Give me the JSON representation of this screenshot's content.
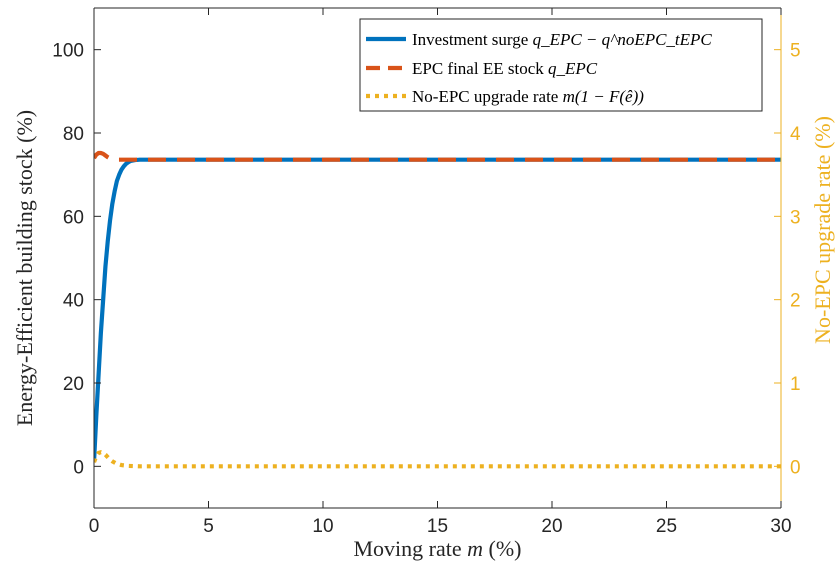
{
  "chart_data": {
    "type": "line",
    "xlabel": "Moving rate m (%)",
    "xlabel_parts": {
      "text": "Moving rate ",
      "var": "m",
      "unit": " (%)"
    },
    "ylabel": "Energy-Efficient building stock (%)",
    "y2label": "No-EPC upgrade rate (%)",
    "xlim": [
      0,
      30
    ],
    "ylim": [
      -10,
      110
    ],
    "y2lim": [
      -0.5,
      5.5
    ],
    "xticks": [
      "0",
      "5",
      "10",
      "15",
      "20",
      "25",
      "30"
    ],
    "yticks": [
      "0",
      "20",
      "40",
      "60",
      "80",
      "100"
    ],
    "y2ticks": [
      "0",
      "1",
      "2",
      "3",
      "4",
      "5"
    ],
    "grid": false,
    "legend_position": "top-right",
    "colors": {
      "left_axis": "#262626",
      "right_axis": "#EDB120"
    },
    "series": [
      {
        "name": "Investment surge q_EPC − q_{t_EPC}^{noEPC}",
        "legend_text": "Investment surge ",
        "legend_math": "q_EPC − q^noEPC_tEPC",
        "color": "#0072BD",
        "style": "solid",
        "axis": "left",
        "x": [
          0,
          0.1,
          0.2,
          0.3,
          0.4,
          0.5,
          0.6,
          0.7,
          0.8,
          0.9,
          1.0,
          1.1,
          1.2,
          1.3,
          1.4,
          1.5,
          1.6,
          1.8,
          2.0,
          2.5,
          5,
          10,
          15,
          20,
          25,
          30
        ],
        "y": [
          1,
          12,
          22,
          32,
          40,
          48,
          54,
          59,
          63,
          66,
          68.5,
          70,
          71.2,
          72,
          72.6,
          73,
          73.3,
          73.5,
          73.6,
          73.6,
          73.6,
          73.6,
          73.6,
          73.6,
          73.6,
          73.6
        ]
      },
      {
        "name": "EPC final EE stock q_EPC",
        "legend_text": "EPC final EE stock ",
        "legend_math": "q_EPC",
        "color": "#D95319",
        "style": "dashed",
        "axis": "left",
        "x": [
          0,
          0.1,
          0.2,
          0.3,
          0.4,
          0.5,
          0.6,
          0.7,
          0.8,
          1.0,
          1.2,
          1.5,
          2.0,
          5,
          10,
          15,
          20,
          25,
          30
        ],
        "y": [
          74,
          74.8,
          75.2,
          75.2,
          75,
          74.6,
          74.2,
          73.9,
          73.7,
          73.6,
          73.6,
          73.6,
          73.6,
          73.6,
          73.6,
          73.6,
          73.6,
          73.6,
          73.6
        ]
      },
      {
        "name": "No-EPC upgrade rate m(1 − F(ê))",
        "legend_text": "No-EPC upgrade rate ",
        "legend_math": "m(1 − F(ê))",
        "color": "#EDB120",
        "style": "dotted",
        "axis": "right",
        "x": [
          0,
          0.1,
          0.2,
          0.3,
          0.4,
          0.5,
          0.6,
          0.7,
          0.8,
          1.0,
          1.2,
          1.5,
          2.0,
          3,
          5,
          10,
          15,
          20,
          25,
          30
        ],
        "y": [
          0.05,
          0.12,
          0.16,
          0.17,
          0.16,
          0.14,
          0.11,
          0.08,
          0.06,
          0.03,
          0.015,
          0.005,
          0,
          0,
          0,
          0,
          0,
          0,
          0,
          0
        ]
      }
    ]
  }
}
